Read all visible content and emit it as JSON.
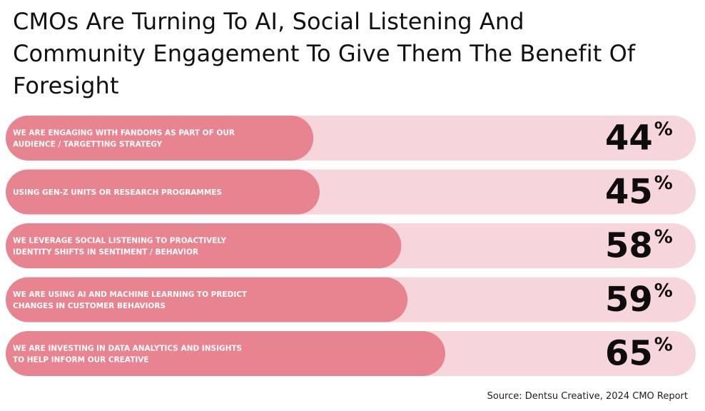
{
  "title": "CMOs Are Turning To AI, Social Listening And Community Engagement To Give Them The Benefit Of Foresight",
  "source": "Source: Dentsu Creative, 2024 CMO Report",
  "colors": {
    "track": "#f7d6db",
    "fill": "#e8848f",
    "label_text": "#ffffff",
    "value_text": "#0d0d0d",
    "title_text": "#111111"
  },
  "chart_data": {
    "type": "bar",
    "orientation": "horizontal",
    "value_suffix": "%",
    "xlim": [
      0,
      100
    ],
    "categories": [
      [
        "WE ARE ENGAGING WITH FANDOMS AS PART OF OUR",
        "AUDIENCE / TARGETTING STRATEGY"
      ],
      [
        "USING GEN-Z UNITS OR RESEARCH PROGRAMMES"
      ],
      [
        "WE LEVERAGE SOCIAL LISTENING TO PROACTIVELY",
        "IDENTITY SHIFTS IN SENTIMENT / BEHAVIOR"
      ],
      [
        "WE ARE USING AI AND MACHINE LEARNING TO PREDICT",
        "CHANGES IN CUSTOMER BEHAVIORS"
      ],
      [
        "WE ARE INVESTING IN DATA ANALYTICS AND INSIGHTS",
        "TO HELP INFORM OUR CREATIVE"
      ]
    ],
    "values": [
      44,
      45,
      58,
      59,
      65
    ]
  }
}
